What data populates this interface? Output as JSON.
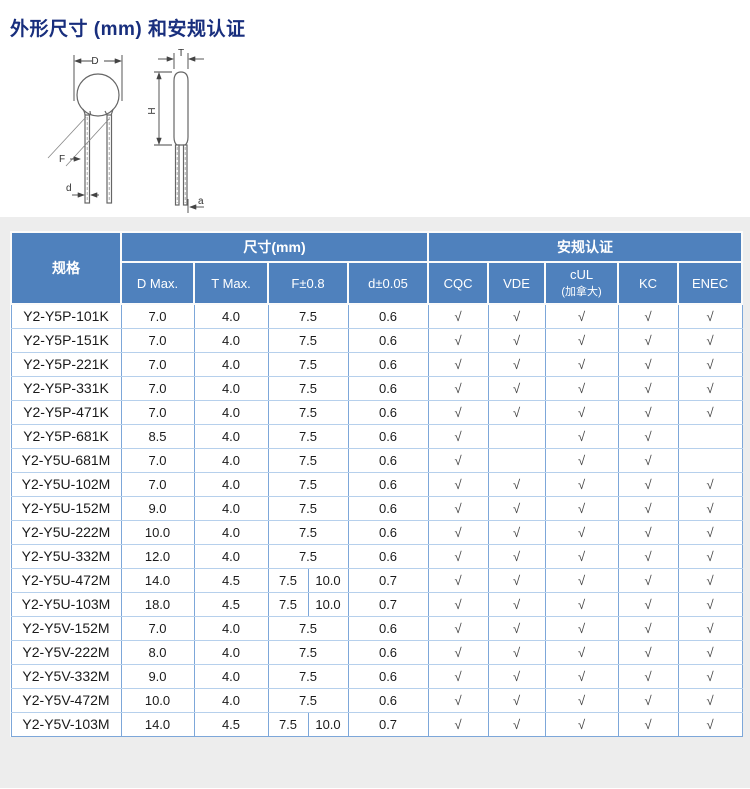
{
  "page": {
    "title": "外形尺寸 (mm) 和安规认证"
  },
  "diagram": {
    "labels": {
      "D": "D",
      "T": "T",
      "H": "H",
      "F": "F",
      "d": "d",
      "a": "a"
    }
  },
  "colors": {
    "title_navy": "#182e7d",
    "header_blue": "#4f81bd",
    "border_blue": "#7da7d9",
    "row_divider_blue": "#b6d0ec",
    "panel_gray": "#ededed",
    "check_gray": "#444444"
  },
  "table": {
    "spec_header": "规格",
    "group_dim": "尺寸(mm)",
    "group_cert": "安规认证",
    "dim_headers": [
      "D Max.",
      "T Max.",
      "F±0.8",
      "d±0.05"
    ],
    "cert_headers": [
      {
        "label": "CQC"
      },
      {
        "label": "VDE"
      },
      {
        "label": "cUL",
        "sub": "(加拿大)"
      },
      {
        "label": "KC"
      },
      {
        "label": "ENEC"
      }
    ],
    "check_glyph": "√",
    "rows": [
      {
        "spec": "Y2-Y5P-101K",
        "d_max": "7.0",
        "t_max": "4.0",
        "f": [
          "7.5"
        ],
        "d_lead": "0.6",
        "certs": [
          "√",
          "√",
          "√",
          "√",
          "√"
        ]
      },
      {
        "spec": "Y2-Y5P-151K",
        "d_max": "7.0",
        "t_max": "4.0",
        "f": [
          "7.5"
        ],
        "d_lead": "0.6",
        "certs": [
          "√",
          "√",
          "√",
          "√",
          "√"
        ]
      },
      {
        "spec": "Y2-Y5P-221K",
        "d_max": "7.0",
        "t_max": "4.0",
        "f": [
          "7.5"
        ],
        "d_lead": "0.6",
        "certs": [
          "√",
          "√",
          "√",
          "√",
          "√"
        ]
      },
      {
        "spec": "Y2-Y5P-331K",
        "d_max": "7.0",
        "t_max": "4.0",
        "f": [
          "7.5"
        ],
        "d_lead": "0.6",
        "certs": [
          "√",
          "√",
          "√",
          "√",
          "√"
        ]
      },
      {
        "spec": "Y2-Y5P-471K",
        "d_max": "7.0",
        "t_max": "4.0",
        "f": [
          "7.5"
        ],
        "d_lead": "0.6",
        "certs": [
          "√",
          "√",
          "√",
          "√",
          "√"
        ]
      },
      {
        "spec": "Y2-Y5P-681K",
        "d_max": "8.5",
        "t_max": "4.0",
        "f": [
          "7.5"
        ],
        "d_lead": "0.6",
        "certs": [
          "√",
          "",
          "√",
          "√",
          ""
        ]
      },
      {
        "spec": "Y2-Y5U-681M",
        "d_max": "7.0",
        "t_max": "4.0",
        "f": [
          "7.5"
        ],
        "d_lead": "0.6",
        "certs": [
          "√",
          "",
          "√",
          "√",
          ""
        ]
      },
      {
        "spec": "Y2-Y5U-102M",
        "d_max": "7.0",
        "t_max": "4.0",
        "f": [
          "7.5"
        ],
        "d_lead": "0.6",
        "certs": [
          "√",
          "√",
          "√",
          "√",
          "√"
        ]
      },
      {
        "spec": "Y2-Y5U-152M",
        "d_max": "9.0",
        "t_max": "4.0",
        "f": [
          "7.5"
        ],
        "d_lead": "0.6",
        "certs": [
          "√",
          "√",
          "√",
          "√",
          "√"
        ]
      },
      {
        "spec": "Y2-Y5U-222M",
        "d_max": "10.0",
        "t_max": "4.0",
        "f": [
          "7.5"
        ],
        "d_lead": "0.6",
        "certs": [
          "√",
          "√",
          "√",
          "√",
          "√"
        ]
      },
      {
        "spec": "Y2-Y5U-332M",
        "d_max": "12.0",
        "t_max": "4.0",
        "f": [
          "7.5"
        ],
        "d_lead": "0.6",
        "certs": [
          "√",
          "√",
          "√",
          "√",
          "√"
        ]
      },
      {
        "spec": "Y2-Y5U-472M",
        "d_max": "14.0",
        "t_max": "4.5",
        "f": [
          "7.5",
          "10.0"
        ],
        "d_lead": "0.7",
        "certs": [
          "√",
          "√",
          "√",
          "√",
          "√"
        ]
      },
      {
        "spec": "Y2-Y5U-103M",
        "d_max": "18.0",
        "t_max": "4.5",
        "f": [
          "7.5",
          "10.0"
        ],
        "d_lead": "0.7",
        "certs": [
          "√",
          "√",
          "√",
          "√",
          "√"
        ]
      },
      {
        "spec": "Y2-Y5V-152M",
        "d_max": "7.0",
        "t_max": "4.0",
        "f": [
          "7.5"
        ],
        "d_lead": "0.6",
        "certs": [
          "√",
          "√",
          "√",
          "√",
          "√"
        ]
      },
      {
        "spec": "Y2-Y5V-222M",
        "d_max": "8.0",
        "t_max": "4.0",
        "f": [
          "7.5"
        ],
        "d_lead": "0.6",
        "certs": [
          "√",
          "√",
          "√",
          "√",
          "√"
        ]
      },
      {
        "spec": "Y2-Y5V-332M",
        "d_max": "9.0",
        "t_max": "4.0",
        "f": [
          "7.5"
        ],
        "d_lead": "0.6",
        "certs": [
          "√",
          "√",
          "√",
          "√",
          "√"
        ]
      },
      {
        "spec": "Y2-Y5V-472M",
        "d_max": "10.0",
        "t_max": "4.0",
        "f": [
          "7.5"
        ],
        "d_lead": "0.6",
        "certs": [
          "√",
          "√",
          "√",
          "√",
          "√"
        ]
      },
      {
        "spec": "Y2-Y5V-103M",
        "d_max": "14.0",
        "t_max": "4.5",
        "f": [
          "7.5",
          "10.0"
        ],
        "d_lead": "0.7",
        "certs": [
          "√",
          "√",
          "√",
          "√",
          "√"
        ]
      }
    ]
  }
}
